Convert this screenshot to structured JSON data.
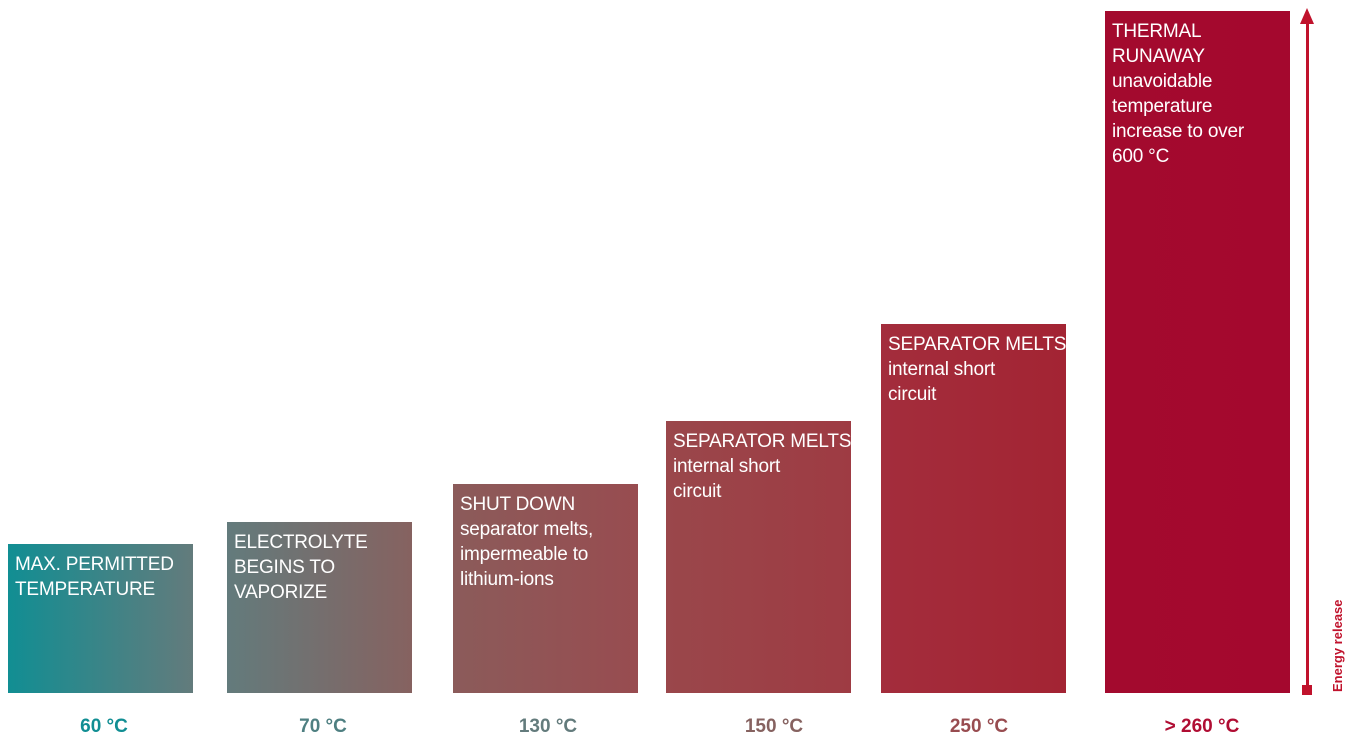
{
  "chart_data": {
    "type": "bar",
    "categories": [
      "60 °C",
      "70 °C",
      "130 °C",
      "150 °C",
      "250 °C",
      "> 260 °C"
    ],
    "bars": [
      {
        "lines": [
          "MAX. PERMITTED",
          "TEMPERATURE"
        ],
        "color_left": "#118e93",
        "color_right": "#637b7c",
        "label_color": "#118e93"
      },
      {
        "lines": [
          "ELECTROLYTE",
          "BEGINS TO",
          "VAPORIZE"
        ],
        "color_left": "#637b7c",
        "color_right": "#866260",
        "label_color": "#4e7f81"
      },
      {
        "lines": [
          "SHUT DOWN",
          "separator melts,",
          "impermeable to",
          "lithium-ions"
        ],
        "color_left": "#8b5b5a",
        "color_right": "#984c50",
        "label_color": "#637b7c"
      },
      {
        "lines": [
          "SEPARATOR MELTS",
          "internal short",
          "circuit"
        ],
        "color_left": "#9a474b",
        "color_right": "#9e3b43",
        "label_color": "#866260"
      },
      {
        "lines": [
          "SEPARATOR MELTS",
          "internal short",
          "circuit"
        ],
        "color_left": "#a32d3c",
        "color_right": "#a32433",
        "label_color": "#984c50"
      },
      {
        "lines": [
          "THERMAL",
          "RUNAWAY",
          "unavoidable",
          "temperature",
          "increase to over",
          "600 °C"
        ],
        "color_left": "#a30a2e",
        "color_right": "#a4082e",
        "label_color": "#b00d33"
      }
    ],
    "heights": [
      149,
      171,
      209,
      272,
      369,
      682
    ],
    "ylabel": "Energy release",
    "axis_color": "#c0122c",
    "grid": false,
    "legend": "none"
  }
}
